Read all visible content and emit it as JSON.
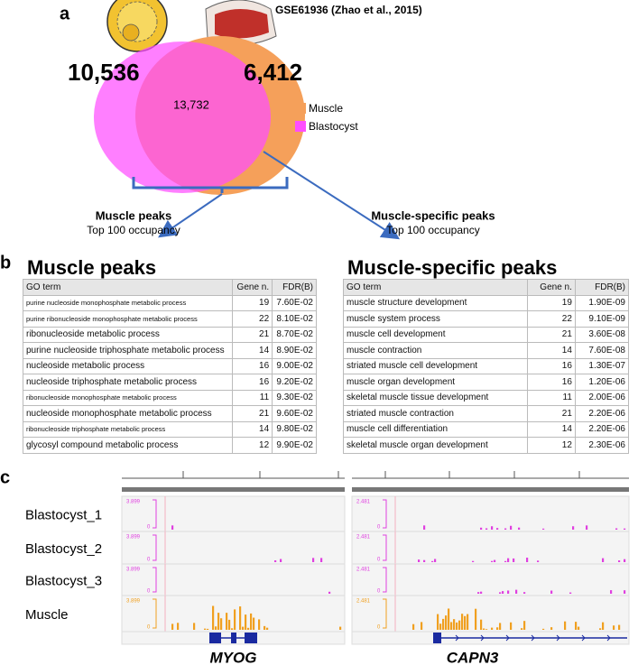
{
  "panel_labels": [
    "a",
    "b",
    "c"
  ],
  "venn": {
    "dataset": "GSE61936 (Zhao et al., 2015)",
    "left_only": "10,536",
    "overlap": "13,732",
    "right_only": "6,412",
    "legend": [
      {
        "name": "Muscle",
        "color": "#f5a05a"
      },
      {
        "name": "Blastocyst",
        "color": "#ff4dff"
      }
    ]
  },
  "groups": [
    {
      "title": "Muscle peaks",
      "subtitle": "Top 100 occupancy"
    },
    {
      "title": "Muscle-specific peaks",
      "subtitle": "Top 100 occupancy"
    }
  ],
  "tables": [
    {
      "title": "Muscle peaks",
      "header": [
        "GO term",
        "Gene n.",
        "FDR(B)"
      ],
      "rows": [
        [
          "purine nucleoside monophosphate metabolic process",
          19,
          "7.60E-02"
        ],
        [
          "purine ribonucleoside monophosphate metabolic process",
          22,
          "8.10E-02"
        ],
        [
          "ribonucleoside metabolic process",
          21,
          "8.70E-02"
        ],
        [
          "purine nucleoside triphosphate metabolic process",
          14,
          "8.90E-02"
        ],
        [
          "nucleoside metabolic process",
          16,
          "9.00E-02"
        ],
        [
          "nucleoside triphosphate metabolic process",
          16,
          "9.20E-02"
        ],
        [
          "ribonucleoside monophosphate metabolic process",
          11,
          "9.30E-02"
        ],
        [
          "nucleoside monophosphate metabolic process",
          21,
          "9.60E-02"
        ],
        [
          "ribonucleoside triphosphate metabolic process",
          14,
          "9.80E-02"
        ],
        [
          "glycosyl compound metabolic process",
          12,
          "9.90E-02"
        ]
      ]
    },
    {
      "title": "Muscle-specific peaks",
      "header": [
        "GO term",
        "Gene n.",
        "FDR(B)"
      ],
      "rows": [
        [
          "muscle structure development",
          19,
          "1.90E-09"
        ],
        [
          "muscle system process",
          22,
          "9.10E-09"
        ],
        [
          "muscle cell development",
          21,
          "3.60E-08"
        ],
        [
          "muscle contraction",
          14,
          "7.60E-08"
        ],
        [
          "striated muscle cell development",
          16,
          "1.30E-07"
        ],
        [
          "muscle organ development",
          16,
          "1.20E-06"
        ],
        [
          "skeletal muscle tissue development",
          11,
          "2.00E-06"
        ],
        [
          "striated muscle contraction",
          21,
          "2.20E-06"
        ],
        [
          "muscle cell differentiation",
          14,
          "2.20E-06"
        ],
        [
          "skeletal muscle organ development",
          12,
          "2.30E-06"
        ]
      ]
    }
  ],
  "browser": {
    "tracks": [
      "Blastocyst_1",
      "Blastocyst_2",
      "Blastocyst_3",
      "Muscle"
    ],
    "genes": [
      {
        "name": "MYOG",
        "scale_max": "3.899",
        "scale_min": "0"
      },
      {
        "name": "CAPN3",
        "scale_max": "2.481",
        "scale_min": "0"
      }
    ]
  }
}
